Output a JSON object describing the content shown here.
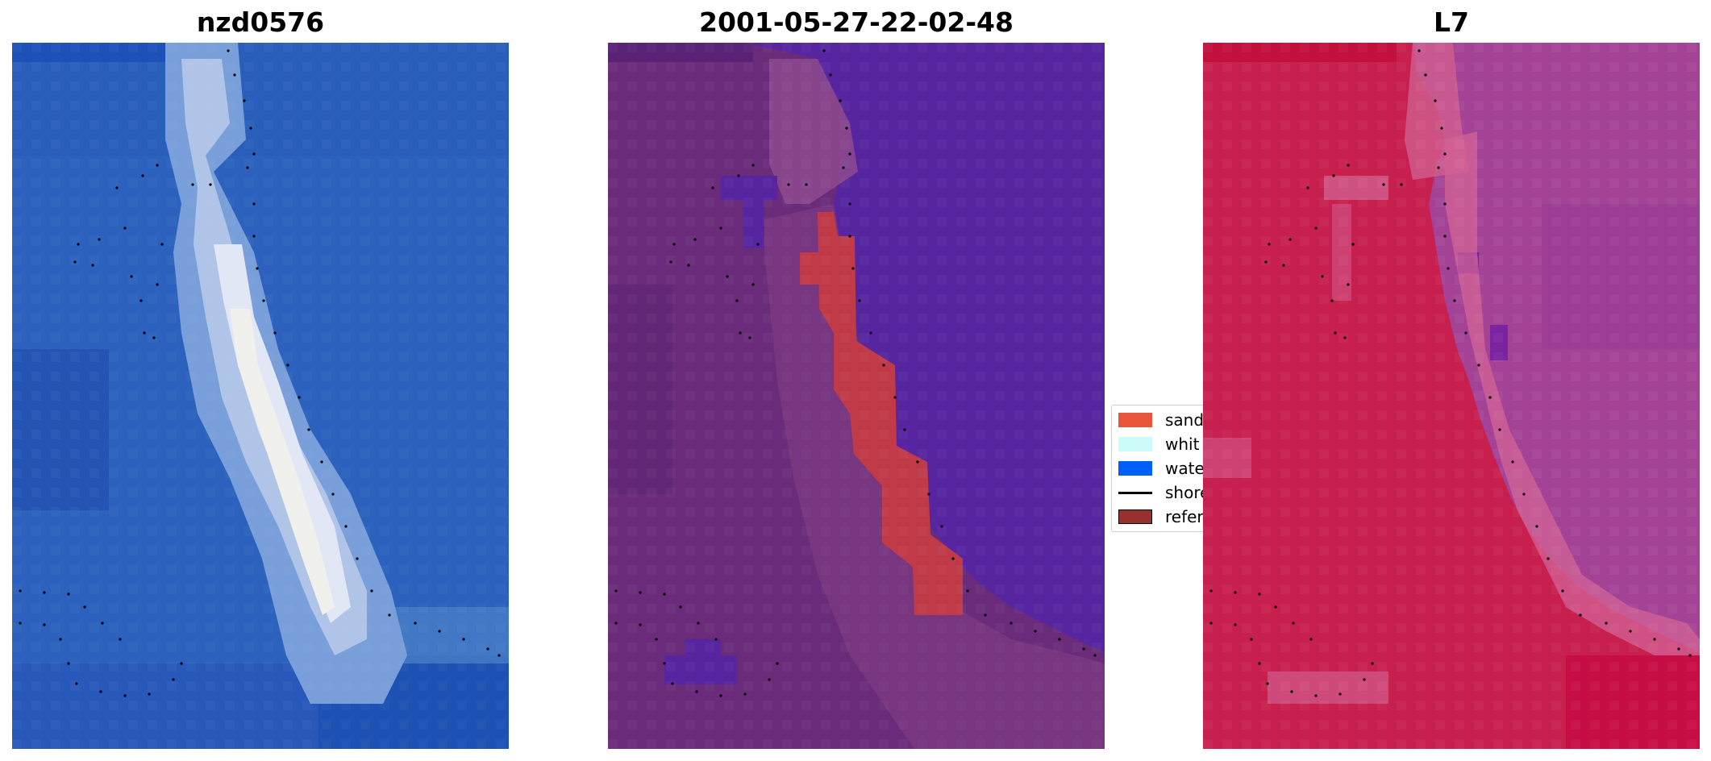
{
  "panels": [
    {
      "title": "nzd0576"
    },
    {
      "title": "2001-05-27-22-02-48"
    },
    {
      "title": "L7"
    }
  ],
  "legend": {
    "items": [
      {
        "label": "sand",
        "color": "#e8553a"
      },
      {
        "label": "whit",
        "color": "#ccfcfa"
      },
      {
        "label": "wate",
        "color": "#0060f5"
      },
      {
        "label": "shore",
        "color": "#000000"
      },
      {
        "label": "refer",
        "color": "#98302f"
      }
    ]
  },
  "colors": {
    "rgb_base": "#2e66c4",
    "classified_base": "#6a2b7a",
    "water_class": "#5725a0",
    "sand_class": "#c13a48",
    "false_color_land": "#c71f4e",
    "false_color_water": "#a44395"
  }
}
